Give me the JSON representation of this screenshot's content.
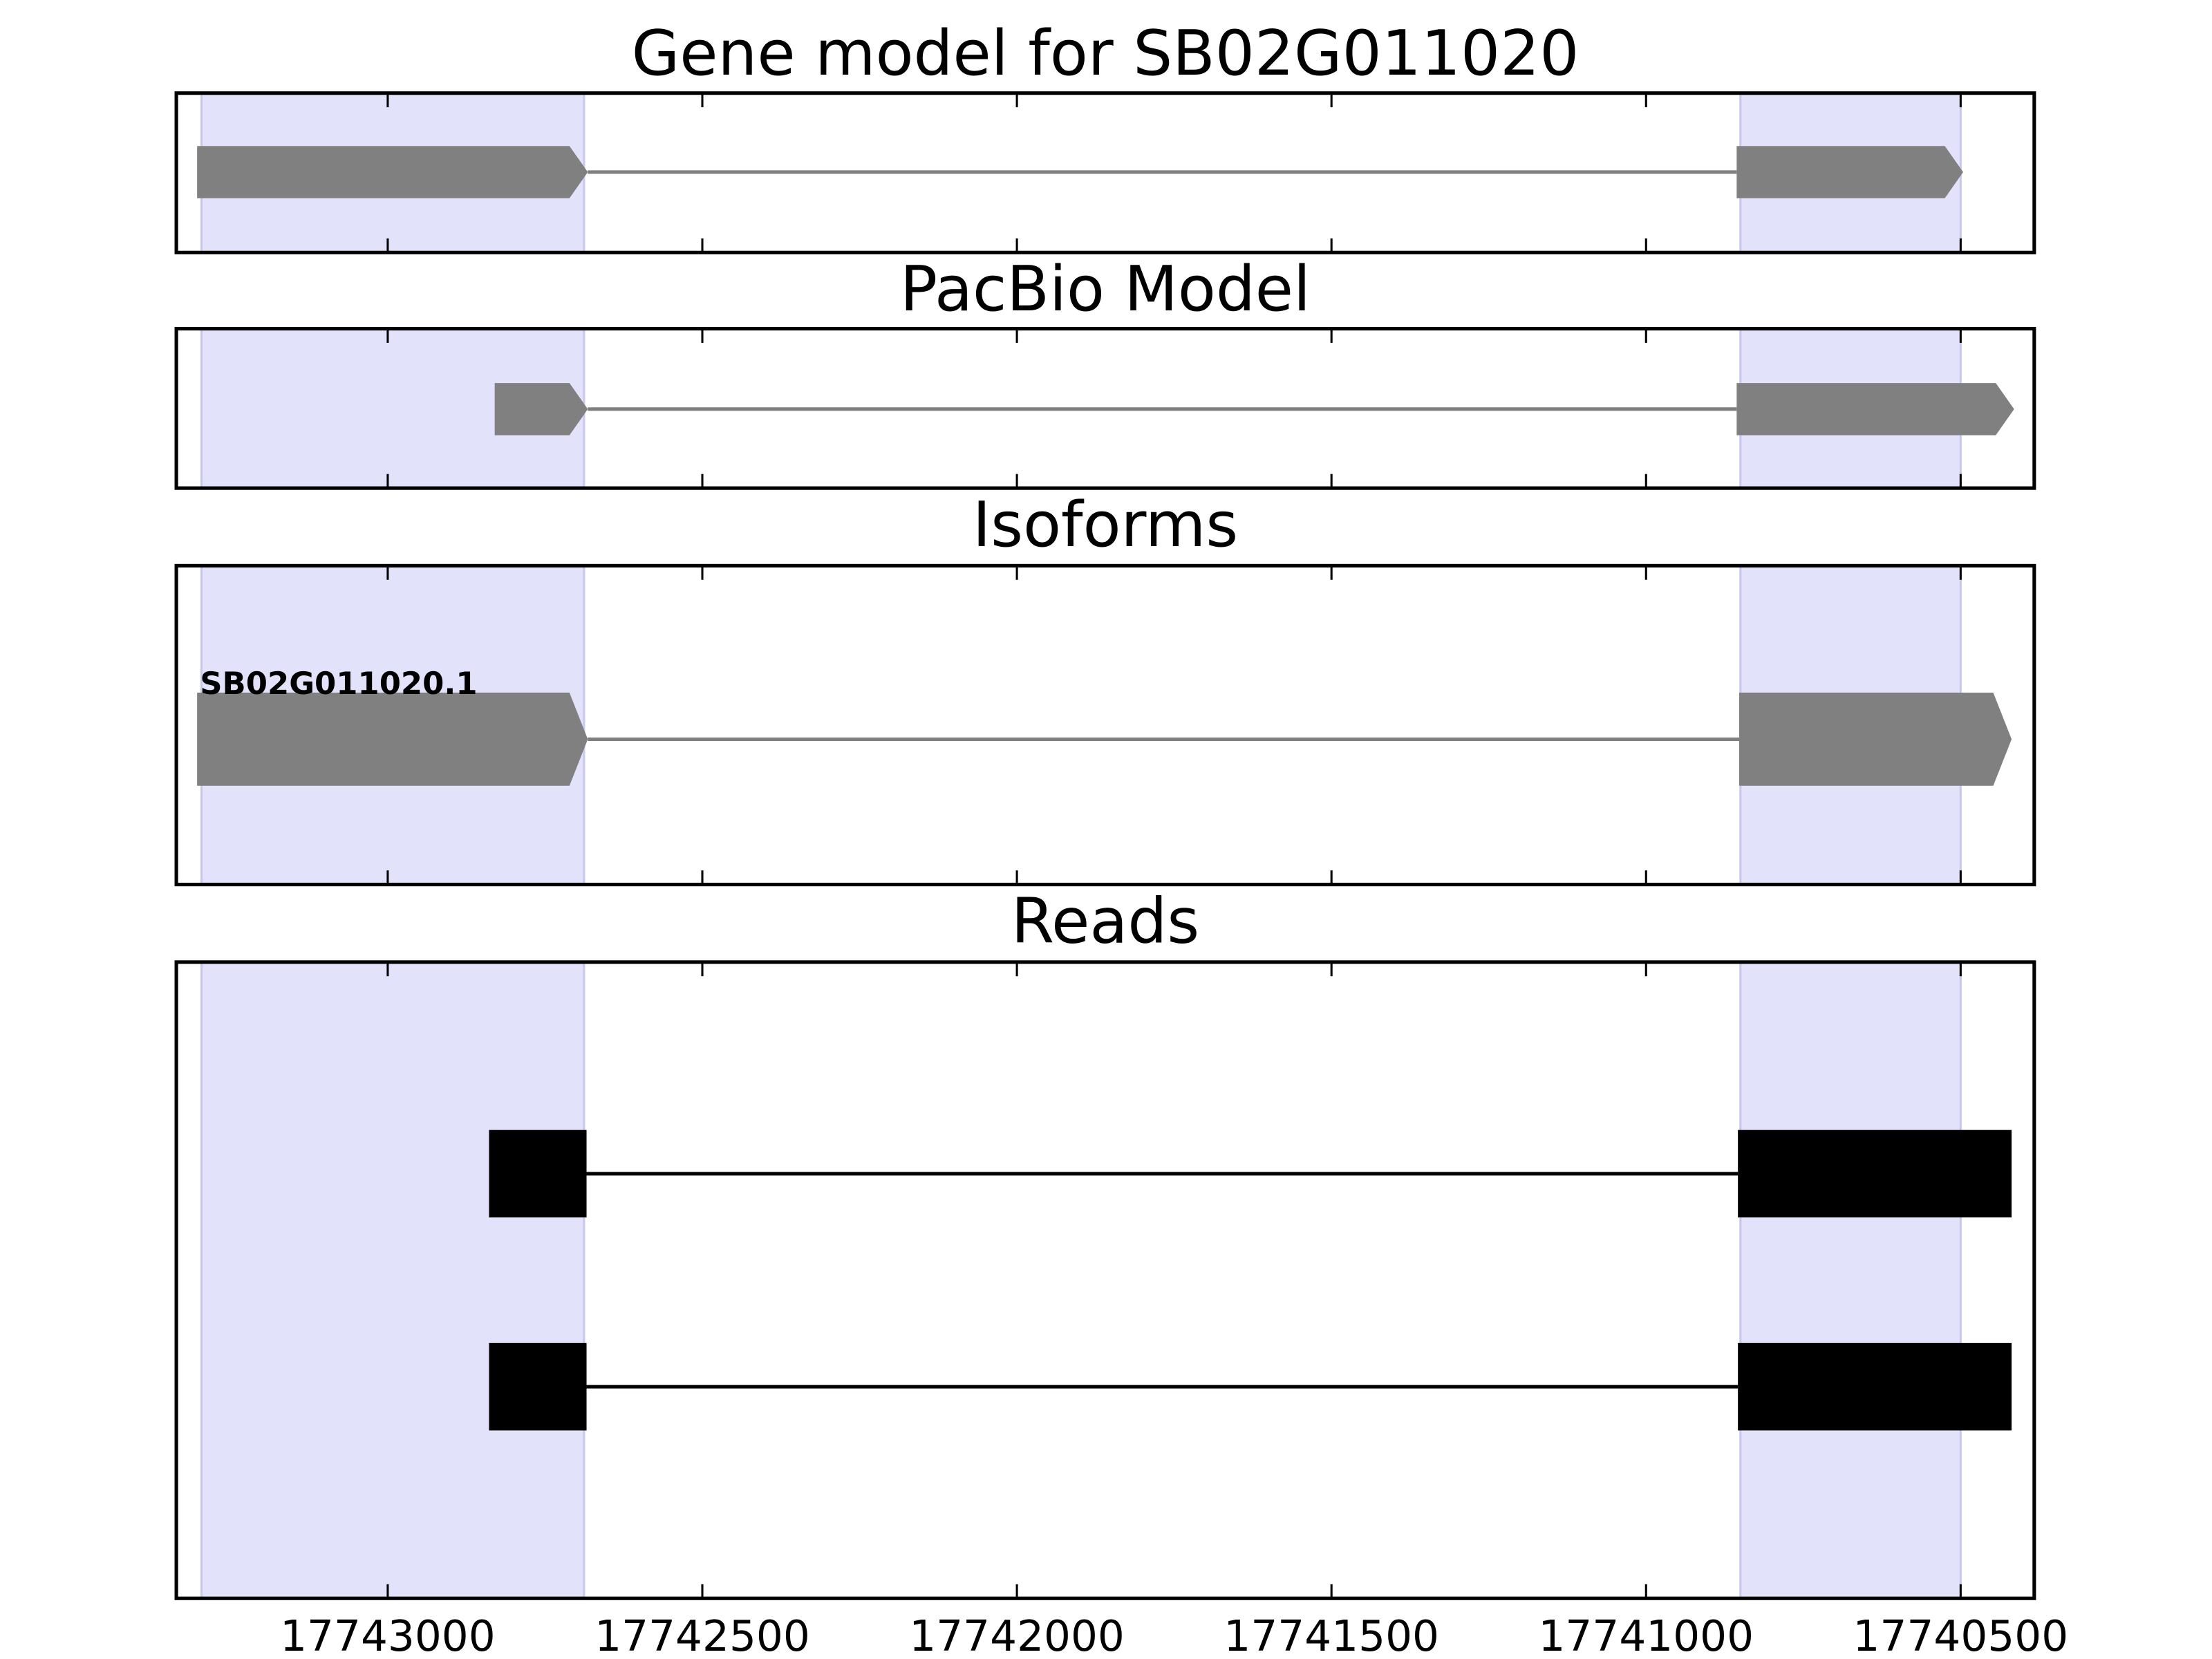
{
  "chart_data": [
    {
      "type": "gene",
      "title": "Gene model for SB02G011020",
      "color": "#808080",
      "xlim": [
        17743336,
        17740383
      ],
      "xticks": [
        17743000,
        17742500,
        17742000,
        17741500,
        17741000,
        17740500
      ],
      "highlights": [
        [
          17743296,
          17742688
        ],
        [
          17740850,
          17740500
        ]
      ],
      "highlight_color": "#e2e2fb",
      "tracks": [
        {
          "exons": [
            [
              17743303,
              17742682
            ],
            [
              17740856,
              17740496
            ]
          ]
        }
      ]
    },
    {
      "type": "gene",
      "title": "PacBio Model",
      "color": "#808080",
      "xlim": [
        17743336,
        17740383
      ],
      "xticks": [
        17743000,
        17742500,
        17742000,
        17741500,
        17741000,
        17740500
      ],
      "highlights": [
        [
          17743296,
          17742688
        ],
        [
          17740850,
          17740500
        ]
      ],
      "highlight_color": "#e2e2fb",
      "tracks": [
        {
          "exons": [
            [
              17742830,
              17742682
            ],
            [
              17740856,
              17740415
            ]
          ]
        }
      ]
    },
    {
      "type": "gene",
      "title": "Isoforms",
      "color": "#808080",
      "xlim": [
        17743336,
        17740383
      ],
      "xticks": [
        17743000,
        17742500,
        17742000,
        17741500,
        17741000,
        17740500
      ],
      "highlights": [
        [
          17743296,
          17742688
        ],
        [
          17740850,
          17740500
        ]
      ],
      "highlight_color": "#e2e2fb",
      "tracks": [
        {
          "name": "SB02G011020.1",
          "exons": [
            [
              17743303,
              17742682
            ],
            [
              17740852,
              17740419
            ]
          ]
        }
      ]
    },
    {
      "type": "reads",
      "title": "Reads",
      "color": "#000000",
      "xlim": [
        17743336,
        17740383
      ],
      "xticks": [
        17743000,
        17742500,
        17742000,
        17741500,
        17741000,
        17740500
      ],
      "highlights": [
        [
          17743296,
          17742688
        ],
        [
          17740850,
          17740500
        ]
      ],
      "highlight_color": "#e2e2fb",
      "tracks": [
        {
          "exons": [
            [
              17742839,
              17742684
            ],
            [
              17740854,
              17740419
            ]
          ]
        },
        {
          "exons": [
            [
              17742839,
              17742684
            ],
            [
              17740854,
              17740419
            ]
          ]
        }
      ]
    }
  ]
}
